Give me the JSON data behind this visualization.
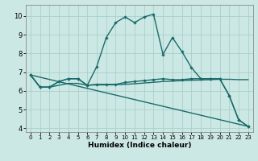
{
  "xlabel": "Humidex (Indice chaleur)",
  "xlim": [
    -0.5,
    23.5
  ],
  "ylim": [
    3.8,
    10.6
  ],
  "yticks": [
    4,
    5,
    6,
    7,
    8,
    9,
    10
  ],
  "xticks": [
    0,
    1,
    2,
    3,
    4,
    5,
    6,
    7,
    8,
    9,
    10,
    11,
    12,
    13,
    14,
    15,
    16,
    17,
    18,
    19,
    20,
    21,
    22,
    23
  ],
  "bg_color": "#cce8e4",
  "line_color": "#1a6b6b",
  "grid_color": "#aacfcc",
  "line1": {
    "x": [
      0,
      1,
      2,
      3,
      4,
      5,
      6,
      7,
      8,
      9,
      10,
      11,
      12,
      13,
      14,
      15,
      16,
      17,
      18,
      19,
      20,
      21,
      22,
      23
    ],
    "y": [
      6.85,
      6.2,
      6.2,
      6.5,
      6.65,
      6.65,
      6.3,
      7.3,
      8.85,
      9.65,
      9.95,
      9.65,
      9.95,
      10.1,
      7.95,
      8.85,
      8.1,
      7.25,
      6.65,
      6.65,
      6.65,
      5.75,
      4.45,
      4.1
    ]
  },
  "line2": {
    "x": [
      0,
      1,
      2,
      3,
      4,
      5,
      6,
      7,
      8,
      9,
      10,
      11,
      12,
      13,
      14,
      15,
      16,
      17,
      18,
      19,
      20,
      21,
      22,
      23
    ],
    "y": [
      6.85,
      6.2,
      6.2,
      6.5,
      6.65,
      6.65,
      6.3,
      6.35,
      6.35,
      6.35,
      6.45,
      6.5,
      6.55,
      6.6,
      6.65,
      6.6,
      6.6,
      6.65,
      6.65,
      6.65,
      6.65,
      5.75,
      4.45,
      4.1
    ]
  },
  "line3": {
    "x": [
      0,
      1,
      2,
      3,
      4,
      5,
      6,
      7,
      8,
      9,
      10,
      11,
      12,
      13,
      14,
      15,
      16,
      17,
      18,
      19,
      20,
      21,
      22,
      23
    ],
    "y": [
      6.85,
      6.2,
      6.2,
      6.3,
      6.4,
      6.4,
      6.3,
      6.32,
      6.32,
      6.33,
      6.35,
      6.38,
      6.42,
      6.46,
      6.5,
      6.52,
      6.55,
      6.57,
      6.58,
      6.6,
      6.62,
      6.62,
      6.6,
      6.6
    ]
  },
  "line4": {
    "x": [
      0,
      23
    ],
    "y": [
      6.85,
      4.1
    ]
  }
}
